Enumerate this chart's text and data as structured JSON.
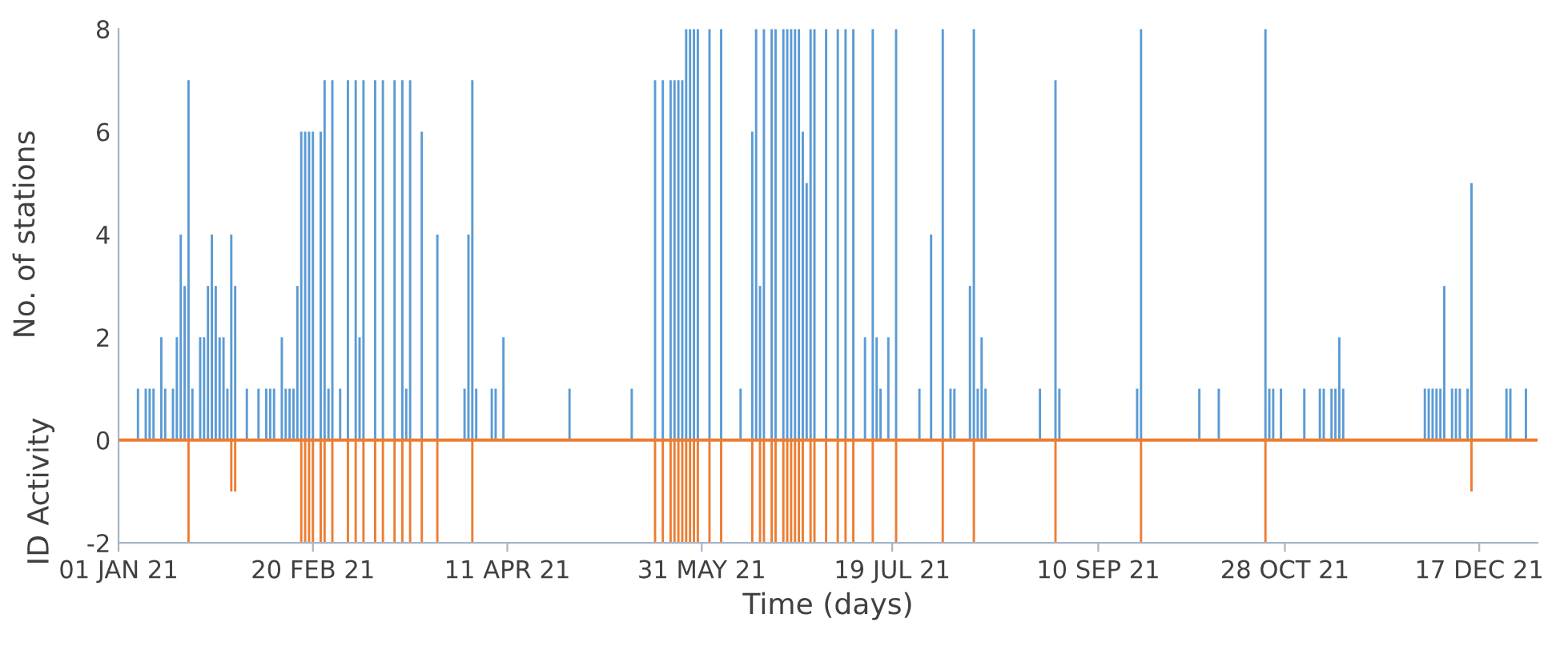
{
  "chart_data": {
    "type": "bar",
    "xlabel": "Time (days)",
    "ylabel": "No. of stations",
    "annotations": [
      "ID Activity"
    ],
    "xlim": [
      "2021-01-01",
      "2022-01-01"
    ],
    "xticks": [
      {
        "value": "2021-01-01",
        "label": "01 JAN 21"
      },
      {
        "value": "2021-02-20",
        "label": "20 FEB 21"
      },
      {
        "value": "2021-04-11",
        "label": "11 APR 21"
      },
      {
        "value": "2021-05-31",
        "label": "31 MAY 21"
      },
      {
        "value": "2021-07-19",
        "label": "19 JUL 21"
      },
      {
        "value": "2021-09-10",
        "label": "10 SEP 21"
      },
      {
        "value": "2021-10-28",
        "label": "28 OCT 21"
      },
      {
        "value": "2021-12-17",
        "label": "17 DEC 21"
      }
    ],
    "ylim": [
      -2,
      8
    ],
    "yticks": [
      -2,
      0,
      2,
      4,
      6,
      8
    ],
    "grid": false,
    "ref_lines": [
      {
        "axis": "y",
        "value": 0,
        "color": "#ed7d31"
      }
    ],
    "series": [
      {
        "color": "#5b9bd5",
        "x": [
          "2021-01-06",
          "2021-01-08",
          "2021-01-09",
          "2021-01-10",
          "2021-01-12",
          "2021-01-13",
          "2021-01-15",
          "2021-01-16",
          "2021-01-17",
          "2021-01-18",
          "2021-01-19",
          "2021-01-20",
          "2021-01-22",
          "2021-01-23",
          "2021-01-24",
          "2021-01-25",
          "2021-01-26",
          "2021-01-27",
          "2021-01-28",
          "2021-01-29",
          "2021-01-30",
          "2021-01-31",
          "2021-02-03",
          "2021-02-06",
          "2021-02-08",
          "2021-02-09",
          "2021-02-10",
          "2021-02-12",
          "2021-02-13",
          "2021-02-14",
          "2021-02-15",
          "2021-02-16",
          "2021-02-17",
          "2021-02-18",
          "2021-02-19",
          "2021-02-20",
          "2021-02-22",
          "2021-02-23",
          "2021-02-24",
          "2021-02-25",
          "2021-02-27",
          "2021-03-01",
          "2021-03-03",
          "2021-03-04",
          "2021-03-05",
          "2021-03-08",
          "2021-03-10",
          "2021-03-13",
          "2021-03-15",
          "2021-03-16",
          "2021-03-17",
          "2021-03-20",
          "2021-03-24",
          "2021-03-31",
          "2021-04-01",
          "2021-04-02",
          "2021-04-03",
          "2021-04-07",
          "2021-04-08",
          "2021-04-10",
          "2021-04-27",
          "2021-05-13",
          "2021-05-19",
          "2021-05-21",
          "2021-05-23",
          "2021-05-24",
          "2021-05-25",
          "2021-05-26",
          "2021-05-27",
          "2021-05-28",
          "2021-05-29",
          "2021-05-30",
          "2021-06-02",
          "2021-06-05",
          "2021-06-10",
          "2021-06-13",
          "2021-06-14",
          "2021-06-15",
          "2021-06-16",
          "2021-06-18",
          "2021-06-19",
          "2021-06-21",
          "2021-06-22",
          "2021-06-23",
          "2021-06-24",
          "2021-06-25",
          "2021-06-26",
          "2021-06-27",
          "2021-06-28",
          "2021-06-29",
          "2021-07-02",
          "2021-07-05",
          "2021-07-07",
          "2021-07-09",
          "2021-07-12",
          "2021-07-14",
          "2021-07-15",
          "2021-07-16",
          "2021-07-18",
          "2021-07-20",
          "2021-07-26",
          "2021-07-29",
          "2021-08-01",
          "2021-08-03",
          "2021-08-04",
          "2021-08-08",
          "2021-08-09",
          "2021-08-10",
          "2021-08-11",
          "2021-08-12",
          "2021-08-26",
          "2021-08-30",
          "2021-08-31",
          "2021-09-20",
          "2021-09-21",
          "2021-10-06",
          "2021-10-11",
          "2021-10-23",
          "2021-10-24",
          "2021-10-25",
          "2021-10-27",
          "2021-11-02",
          "2021-11-06",
          "2021-11-07",
          "2021-11-09",
          "2021-11-10",
          "2021-11-11",
          "2021-11-12",
          "2021-12-03",
          "2021-12-04",
          "2021-12-05",
          "2021-12-06",
          "2021-12-07",
          "2021-12-08",
          "2021-12-10",
          "2021-12-11",
          "2021-12-12",
          "2021-12-14",
          "2021-12-15",
          "2021-12-24",
          "2021-12-25",
          "2021-12-29"
        ],
        "values": [
          1,
          1,
          1,
          1,
          2,
          1,
          1,
          2,
          4,
          3,
          7,
          1,
          2,
          2,
          3,
          4,
          3,
          2,
          2,
          1,
          4,
          3,
          1,
          1,
          1,
          1,
          1,
          2,
          1,
          1,
          1,
          3,
          6,
          6,
          6,
          6,
          6,
          7,
          1,
          7,
          1,
          7,
          7,
          2,
          7,
          7,
          7,
          7,
          7,
          1,
          7,
          6,
          4,
          1,
          4,
          7,
          1,
          1,
          1,
          2,
          1,
          1,
          7,
          7,
          7,
          7,
          7,
          7,
          8,
          8,
          8,
          8,
          8,
          8,
          1,
          6,
          8,
          3,
          8,
          8,
          8,
          8,
          8,
          8,
          8,
          8,
          6,
          5,
          8,
          8,
          8,
          8,
          8,
          8,
          2,
          8,
          2,
          1,
          2,
          8,
          1,
          4,
          8,
          1,
          1,
          3,
          8,
          1,
          2,
          1,
          1,
          7,
          1,
          1,
          8,
          1,
          1,
          8,
          1,
          1,
          1,
          1,
          1,
          1,
          1,
          1,
          2,
          1,
          1,
          1,
          1,
          1,
          1,
          3,
          1,
          1,
          1,
          1,
          5,
          1,
          1,
          1
        ]
      },
      {
        "color": "#ed7d31",
        "x": [
          "2021-01-19",
          "2021-01-30",
          "2021-01-31",
          "2021-02-17",
          "2021-02-18",
          "2021-02-19",
          "2021-02-20",
          "2021-02-22",
          "2021-02-23",
          "2021-02-25",
          "2021-03-01",
          "2021-03-03",
          "2021-03-05",
          "2021-03-08",
          "2021-03-10",
          "2021-03-13",
          "2021-03-15",
          "2021-03-17",
          "2021-03-20",
          "2021-03-24",
          "2021-04-02",
          "2021-05-19",
          "2021-05-21",
          "2021-05-23",
          "2021-05-24",
          "2021-05-25",
          "2021-05-26",
          "2021-05-27",
          "2021-05-28",
          "2021-05-29",
          "2021-05-30",
          "2021-06-02",
          "2021-06-05",
          "2021-06-13",
          "2021-06-15",
          "2021-06-16",
          "2021-06-18",
          "2021-06-19",
          "2021-06-21",
          "2021-06-22",
          "2021-06-23",
          "2021-06-24",
          "2021-06-25",
          "2021-06-26",
          "2021-06-28",
          "2021-06-29",
          "2021-07-02",
          "2021-07-05",
          "2021-07-07",
          "2021-07-09",
          "2021-07-14",
          "2021-07-20",
          "2021-08-01",
          "2021-08-09",
          "2021-08-30",
          "2021-09-21",
          "2021-10-23",
          "2021-12-15"
        ],
        "values": [
          -2,
          -1,
          -1,
          -2,
          -2,
          -2,
          -2,
          -2,
          -2,
          -2,
          -2,
          -2,
          -2,
          -2,
          -2,
          -2,
          -2,
          -2,
          -2,
          -2,
          -2,
          -2,
          -2,
          -2,
          -2,
          -2,
          -2,
          -2,
          -2,
          -2,
          -2,
          -2,
          -2,
          -2,
          -2,
          -2,
          -2,
          -2,
          -2,
          -2,
          -2,
          -2,
          -2,
          -2,
          -2,
          -2,
          -2,
          -2,
          -2,
          -2,
          -2,
          -2,
          -2,
          -2,
          -2,
          -2,
          -2,
          -1
        ]
      }
    ]
  }
}
